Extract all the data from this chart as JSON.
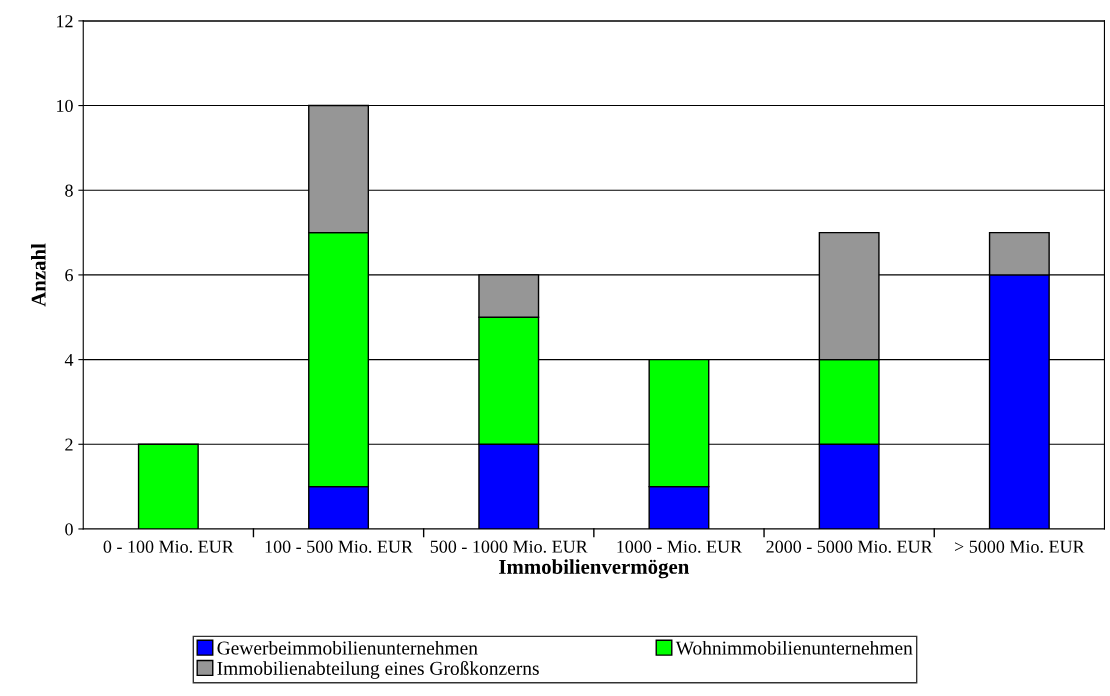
{
  "chart_data": {
    "type": "bar",
    "stacked": true,
    "xlabel": "Immobilienvermögen",
    "ylabel": "Anzahl",
    "categories": [
      "0 - 100 Mio. EUR",
      "100 - 500 Mio. EUR",
      "500 - 1000 Mio. EUR",
      "1000 - Mio. EUR",
      "2000 - 5000 Mio. EUR",
      "> 5000 Mio. EUR"
    ],
    "series": [
      {
        "name": "Gewerbeimmobilienunternehmen",
        "color": "#0000ff",
        "values": [
          0,
          1,
          2,
          1,
          2,
          6
        ]
      },
      {
        "name": "Wohnimmobilienunternehmen",
        "color": "#00ff00",
        "values": [
          2,
          6,
          3,
          3,
          2,
          0
        ]
      },
      {
        "name": "Immobilienabteilung eines Großkonzerns",
        "color": "#969696",
        "values": [
          0,
          3,
          1,
          0,
          3,
          1
        ]
      }
    ],
    "ylim": [
      0,
      12
    ],
    "yticks": [
      0,
      2,
      4,
      6,
      8,
      10,
      12
    ],
    "grid": "y",
    "legend": "bottom"
  }
}
